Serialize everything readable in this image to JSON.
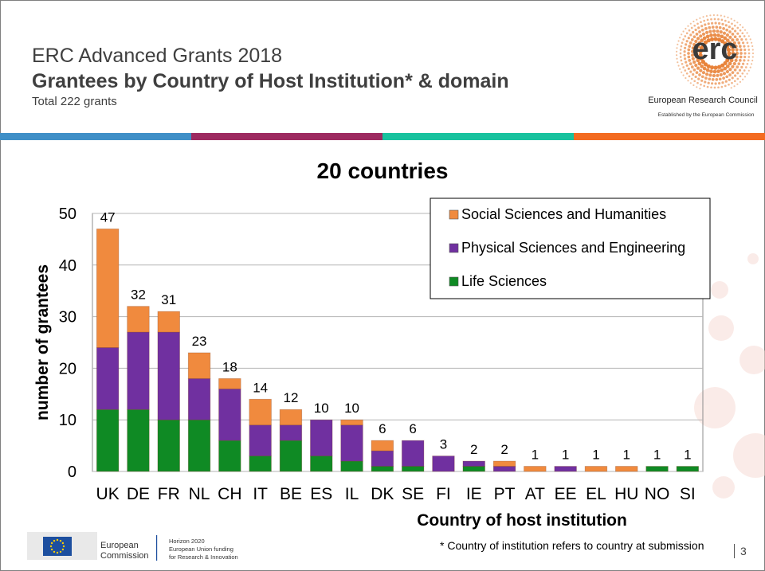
{
  "header": {
    "title_line1": "ERC Advanced Grants 2018",
    "title_line2": "Grantees by Country of Host Institution* & domain",
    "subtitle": "Total 222 grants"
  },
  "logo": {
    "wordmark": "erc",
    "name": "European Research Council",
    "tagline": "Established by the European Commission",
    "accent": "#e8833a"
  },
  "stripes": [
    "#3f8fc7",
    "#9d2a60",
    "#17c29e",
    "#f36b21"
  ],
  "chart_data": {
    "type": "bar",
    "stacked": true,
    "title": "20 countries",
    "xlabel": "Country of host institution",
    "ylabel": "number of grantees",
    "ylim": [
      0,
      50
    ],
    "yticks": [
      0,
      10,
      20,
      30,
      40,
      50
    ],
    "grid": true,
    "legend_position": "top-right",
    "categories": [
      "UK",
      "DE",
      "FR",
      "NL",
      "CH",
      "IT",
      "BE",
      "ES",
      "IL",
      "DK",
      "SE",
      "FI",
      "IE",
      "PT",
      "AT",
      "EE",
      "EL",
      "HU",
      "NO",
      "SI"
    ],
    "series": [
      {
        "name": "Life Sciences",
        "color": "#0f8a24",
        "values": [
          12,
          12,
          10,
          10,
          6,
          3,
          6,
          3,
          2,
          1,
          1,
          0,
          1,
          0,
          0,
          0,
          0,
          0,
          1,
          1
        ]
      },
      {
        "name": "Physical Sciences and Engineering",
        "color": "#7030a0",
        "values": [
          12,
          15,
          17,
          8,
          10,
          6,
          3,
          7,
          7,
          3,
          5,
          3,
          1,
          1,
          0,
          1,
          0,
          0,
          0,
          0
        ]
      },
      {
        "name": "Social Sciences and Humanities",
        "color": "#f08a3e",
        "values": [
          23,
          5,
          4,
          5,
          2,
          5,
          3,
          0,
          1,
          2,
          0,
          0,
          0,
          1,
          1,
          0,
          1,
          1,
          0,
          0
        ]
      }
    ],
    "totals": [
      47,
      32,
      31,
      23,
      18,
      14,
      12,
      10,
      10,
      6,
      6,
      3,
      2,
      2,
      1,
      1,
      1,
      1,
      1,
      1
    ],
    "legend_order": [
      "Social Sciences and Humanities",
      "Physical Sciences and Engineering",
      "Life Sciences"
    ]
  },
  "footer": {
    "ec_name_line1": "European",
    "ec_name_line2": "Commission",
    "h2020_line1": "Horizon 2020",
    "h2020_line2": "European Union funding",
    "h2020_line3": "for Research & Innovation",
    "footnote": "* Country of institution refers to country at submission",
    "page_number": "3"
  }
}
